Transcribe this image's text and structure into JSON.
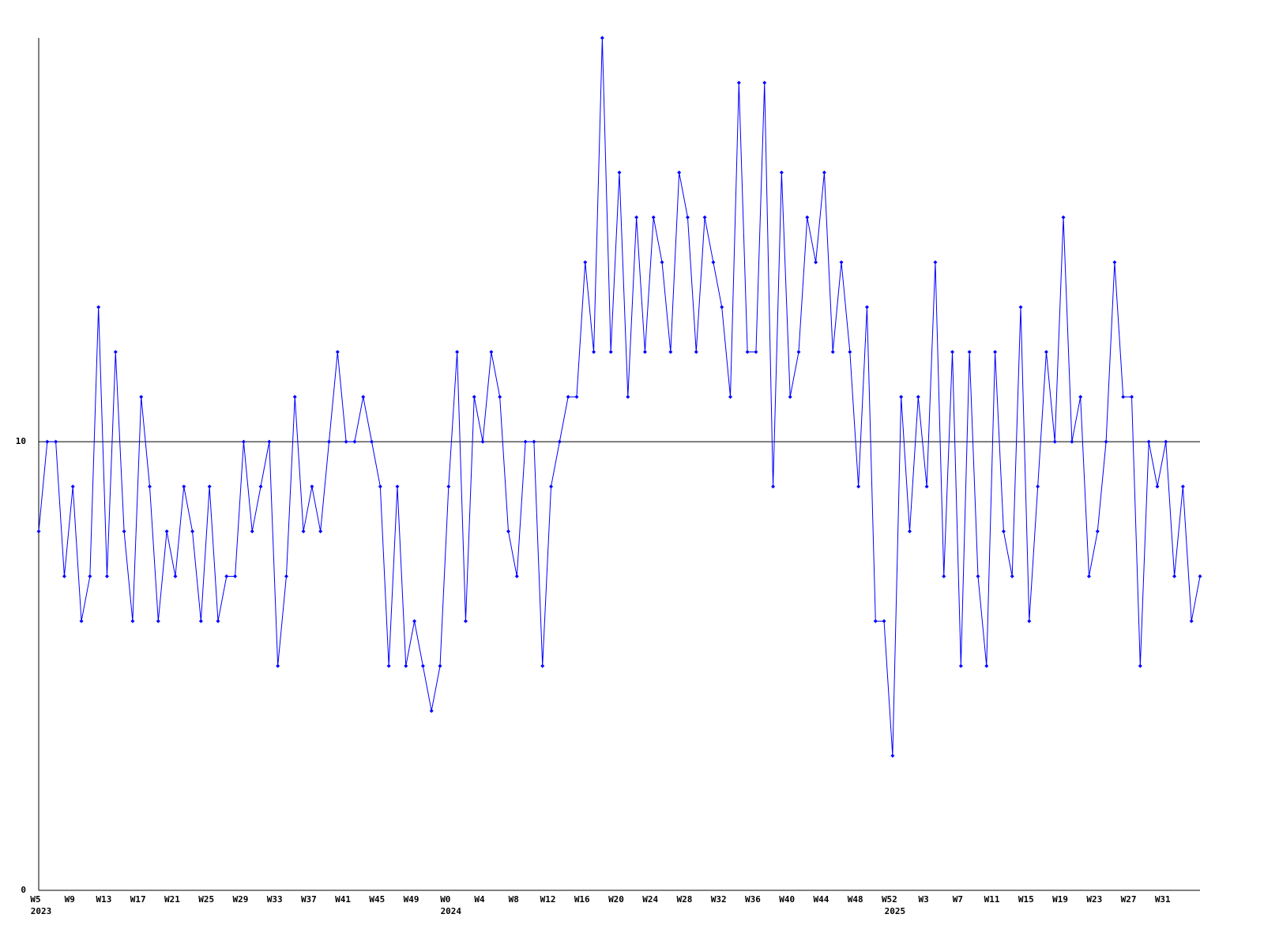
{
  "chart_data": {
    "type": "line",
    "categories": [
      "W5",
      null,
      null,
      null,
      "W9",
      null,
      null,
      null,
      "W13",
      null,
      null,
      null,
      "W17",
      null,
      null,
      null,
      "W21",
      null,
      null,
      null,
      "W25",
      null,
      null,
      null,
      "W29",
      null,
      null,
      null,
      "W33",
      null,
      null,
      null,
      "W37",
      null,
      null,
      null,
      "W41",
      null,
      null,
      null,
      "W45",
      null,
      null,
      null,
      "W49",
      null,
      null,
      null,
      "W0",
      null,
      null,
      null,
      "W4",
      null,
      null,
      null,
      "W8",
      null,
      null,
      null,
      "W12",
      null,
      null,
      null,
      "W16",
      null,
      null,
      null,
      "W20",
      null,
      null,
      null,
      "W24",
      null,
      null,
      null,
      "W28",
      null,
      null,
      null,
      "W32",
      null,
      null,
      null,
      "W36",
      null,
      null,
      null,
      "W40",
      null,
      null,
      null,
      "W44",
      null,
      null,
      null,
      "W48",
      null,
      null,
      null,
      "W52",
      null,
      null,
      null,
      "W3",
      null,
      null,
      null,
      "W7",
      null,
      null,
      null,
      "W11",
      null,
      null,
      null,
      "W15",
      null,
      null,
      null,
      "W19",
      null,
      null,
      null,
      "W23",
      null,
      null,
      null,
      "W27",
      null,
      null,
      null,
      "W31",
      null,
      null,
      null,
      null
    ],
    "years": [
      "2023",
      null,
      null,
      null,
      null,
      null,
      null,
      null,
      null,
      null,
      null,
      null,
      null,
      null,
      null,
      null,
      null,
      null,
      null,
      null,
      null,
      null,
      null,
      null,
      null,
      null,
      null,
      null,
      null,
      null,
      null,
      null,
      null,
      null,
      null,
      null,
      null,
      null,
      null,
      null,
      null,
      null,
      null,
      null,
      null,
      null,
      null,
      null,
      "2024",
      null,
      null,
      null,
      null,
      null,
      null,
      null,
      null,
      null,
      null,
      null,
      null,
      null,
      null,
      null,
      null,
      null,
      null,
      null,
      null,
      null,
      null,
      null,
      null,
      null,
      null,
      null,
      null,
      null,
      null,
      null,
      null,
      null,
      null,
      null,
      null,
      null,
      null,
      null,
      null,
      null,
      null,
      null,
      null,
      null,
      null,
      null,
      null,
      null,
      null,
      null,
      "2025",
      null,
      null,
      null,
      null,
      null,
      null,
      null,
      null,
      null,
      null,
      null,
      null,
      null,
      null,
      null,
      null,
      null,
      null,
      null,
      null,
      null,
      null,
      null,
      null,
      null,
      null,
      null,
      null,
      null,
      null,
      null,
      null,
      null,
      null,
      null,
      null
    ],
    "values": [
      8,
      10,
      10,
      7,
      9,
      6,
      7,
      13,
      7,
      12,
      8,
      6,
      11,
      9,
      6,
      8,
      7,
      9,
      8,
      6,
      9,
      6,
      7,
      7,
      10,
      8,
      9,
      10,
      5,
      7,
      11,
      8,
      9,
      8,
      10,
      12,
      10,
      10,
      11,
      10,
      9,
      5,
      9,
      5,
      6,
      5,
      4,
      5,
      9,
      12,
      6,
      11,
      10,
      12,
      11,
      8,
      7,
      10,
      10,
      5,
      9,
      10,
      11,
      11,
      14,
      12,
      19,
      12,
      16,
      11,
      15,
      12,
      15,
      14,
      12,
      16,
      15,
      12,
      15,
      14,
      13,
      11,
      18,
      12,
      12,
      18,
      9,
      16,
      11,
      12,
      15,
      14,
      16,
      12,
      14,
      12,
      9,
      13,
      6,
      6,
      3,
      11,
      8,
      11,
      9,
      14,
      7,
      12,
      5,
      12,
      7,
      5,
      12,
      8,
      7,
      13,
      6,
      9,
      12,
      10,
      15,
      10,
      11,
      7,
      8,
      10,
      14,
      11,
      11,
      5,
      10,
      9,
      10,
      7,
      9,
      6,
      7
    ],
    "color": "#0000ff",
    "ylim": [
      0,
      19
    ],
    "yticks": [
      0,
      10
    ],
    "grid": true
  }
}
